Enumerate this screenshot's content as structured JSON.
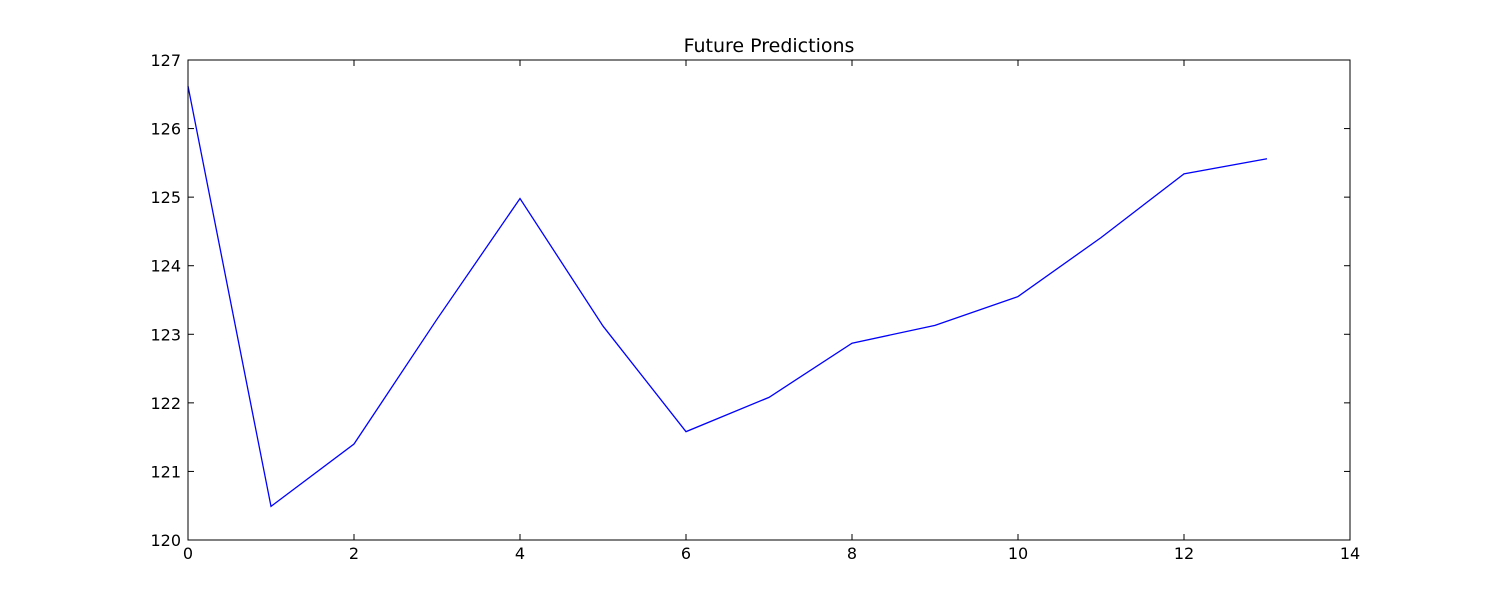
{
  "chart_data": {
    "type": "line",
    "title": "Future Predictions",
    "xlabel": "",
    "ylabel": "",
    "xlim": [
      0,
      14
    ],
    "ylim": [
      120,
      127
    ],
    "xticks": [
      0,
      2,
      4,
      6,
      8,
      10,
      12,
      14
    ],
    "xtick_labels": [
      "0",
      "2",
      "4",
      "6",
      "8",
      "10",
      "12",
      "14"
    ],
    "yticks": [
      120,
      121,
      122,
      123,
      124,
      125,
      126,
      127
    ],
    "ytick_labels": [
      "120",
      "121",
      "122",
      "123",
      "124",
      "125",
      "126",
      "127"
    ],
    "grid": false,
    "legend": "none",
    "series": [
      {
        "color": "#0000ff",
        "x": [
          0,
          1,
          2,
          3,
          4,
          5,
          6,
          7,
          8,
          9,
          10,
          11,
          12,
          13
        ],
        "y": [
          126.62,
          120.49,
          121.4,
          123.22,
          124.98,
          123.12,
          121.58,
          122.08,
          122.87,
          123.13,
          123.55,
          124.41,
          125.34,
          125.56
        ]
      }
    ]
  }
}
